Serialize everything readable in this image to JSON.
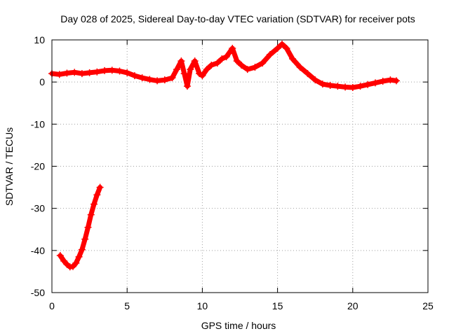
{
  "chart_data": {
    "type": "scatter",
    "title": "Day 028 of 2025, Sidereal Day-to-day VTEC variation (SDTVAR) for receiver pots",
    "xlabel": "GPS time / hours",
    "ylabel": "SDTVAR / TECUs",
    "xlim": [
      0,
      25
    ],
    "ylim": [
      -50,
      10
    ],
    "xticks": [
      0,
      5,
      10,
      15,
      20,
      25
    ],
    "yticks": [
      -50,
      -40,
      -30,
      -20,
      -10,
      0,
      10
    ],
    "grid": true,
    "marker": "plus",
    "series": [
      {
        "name": "pots main trace",
        "color": "#ff0000",
        "points": [
          [
            0.0,
            2.0
          ],
          [
            0.5,
            1.8
          ],
          [
            1.0,
            2.1
          ],
          [
            1.5,
            2.3
          ],
          [
            2.0,
            2.0
          ],
          [
            2.5,
            2.2
          ],
          [
            3.0,
            2.4
          ],
          [
            3.5,
            2.7
          ],
          [
            4.0,
            2.8
          ],
          [
            4.5,
            2.6
          ],
          [
            5.0,
            2.2
          ],
          [
            5.5,
            1.5
          ],
          [
            6.0,
            1.0
          ],
          [
            6.5,
            0.6
          ],
          [
            7.0,
            0.3
          ],
          [
            7.5,
            0.5
          ],
          [
            8.0,
            1.0
          ],
          [
            8.3,
            3.0
          ],
          [
            8.6,
            5.0
          ],
          [
            8.8,
            2.0
          ],
          [
            9.0,
            -1.0
          ],
          [
            9.2,
            3.0
          ],
          [
            9.5,
            5.0
          ],
          [
            9.8,
            2.0
          ],
          [
            10.0,
            1.5
          ],
          [
            10.3,
            3.0
          ],
          [
            10.6,
            4.0
          ],
          [
            11.0,
            4.5
          ],
          [
            11.3,
            5.5
          ],
          [
            11.6,
            6.0
          ],
          [
            12.0,
            8.0
          ],
          [
            12.3,
            5.0
          ],
          [
            12.6,
            4.0
          ],
          [
            13.0,
            3.0
          ],
          [
            13.5,
            3.5
          ],
          [
            14.0,
            4.5
          ],
          [
            14.5,
            6.5
          ],
          [
            15.0,
            8.0
          ],
          [
            15.3,
            9.0
          ],
          [
            15.6,
            8.0
          ],
          [
            16.0,
            5.5
          ],
          [
            16.5,
            3.5
          ],
          [
            17.0,
            2.0
          ],
          [
            17.5,
            0.5
          ],
          [
            18.0,
            -0.5
          ],
          [
            18.5,
            -0.8
          ],
          [
            19.0,
            -1.0
          ],
          [
            19.5,
            -1.2
          ],
          [
            20.0,
            -1.3
          ],
          [
            20.5,
            -1.0
          ],
          [
            21.0,
            -0.6
          ],
          [
            21.5,
            -0.2
          ],
          [
            22.0,
            0.2
          ],
          [
            22.5,
            0.5
          ],
          [
            22.9,
            0.3
          ]
        ]
      },
      {
        "name": "pots early segment",
        "color": "#ff0000",
        "points": [
          [
            0.55,
            -41.2
          ],
          [
            0.8,
            -42.5
          ],
          [
            1.0,
            -43.3
          ],
          [
            1.2,
            -43.9
          ],
          [
            1.4,
            -43.8
          ],
          [
            1.6,
            -43.0
          ],
          [
            1.8,
            -41.5
          ],
          [
            2.0,
            -39.8
          ],
          [
            2.2,
            -37.3
          ],
          [
            2.4,
            -34.5
          ],
          [
            2.6,
            -31.5
          ],
          [
            2.8,
            -29.0
          ],
          [
            3.0,
            -26.8
          ],
          [
            3.2,
            -25.0
          ]
        ]
      }
    ]
  }
}
